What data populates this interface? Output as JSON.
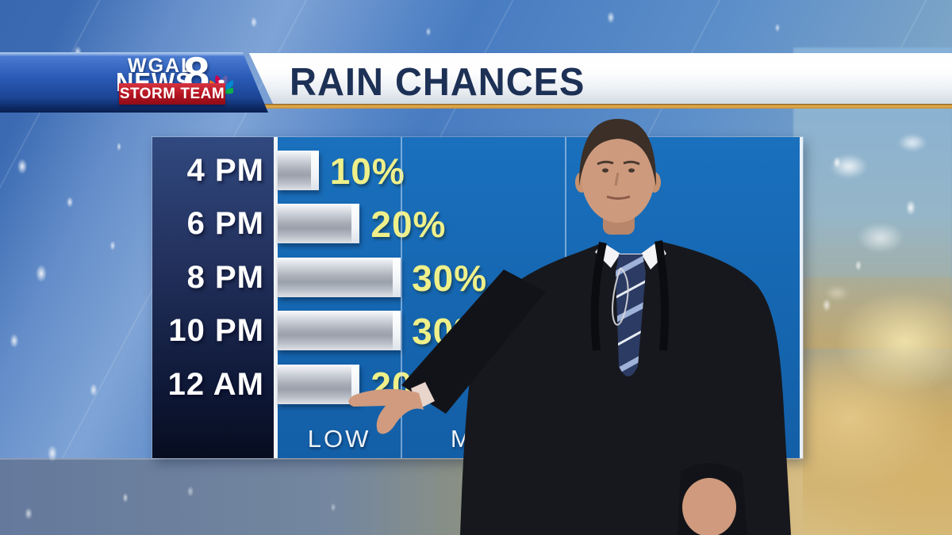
{
  "station": {
    "call_letters": "WGAL",
    "news_word": "NEWS",
    "channel_number": "8",
    "team_label": "STORM TEAM",
    "peacock_colors": [
      "#f8c21a",
      "#f37021",
      "#cc004c",
      "#6460aa",
      "#0089d0",
      "#0db14b"
    ]
  },
  "header": {
    "title": "RAIN CHANCES",
    "underline_color": "#d9a43f",
    "title_color": "#1d3156"
  },
  "chart_data": {
    "type": "bar",
    "orientation": "horizontal",
    "title": "RAIN CHANCES",
    "categories": [
      "4 PM",
      "6 PM",
      "8 PM",
      "10 PM",
      "12 AM"
    ],
    "values": [
      10,
      20,
      30,
      30,
      20
    ],
    "value_labels": [
      "10%",
      "20%",
      "30%",
      "30%",
      "20%"
    ],
    "unit": "%",
    "xlim": [
      0,
      128
    ],
    "zones": [
      {
        "label": "LOW",
        "range_pct": [
          0,
          30
        ]
      },
      {
        "label": "MOD",
        "range_pct": [
          30,
          70
        ]
      }
    ],
    "grid": "vertical zone dividers",
    "legend": "none",
    "colors": {
      "plot_bg": "#1565af",
      "bar_fill": "#c3c8d0",
      "bar_cap": "#ffffff",
      "value_text": "#eff089",
      "category_text": "#ffffff",
      "zone_text": "#eef3f8",
      "column_bg_top": "#31497f",
      "column_bg_bottom": "#070d20"
    }
  },
  "scene": {
    "presenter_description": "Weather anchor in dark suit, white shirt and striped tie pointing at the 12 AM bar",
    "backdrop": "blue rain backdrop with droplets, golden sunset clouds lower right"
  }
}
